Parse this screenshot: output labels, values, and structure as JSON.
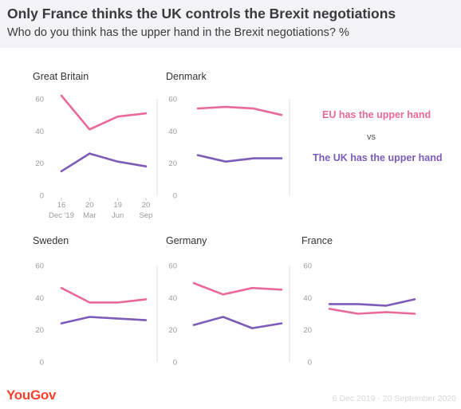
{
  "header": {
    "title": "Only France thinks the UK controls the Brexit negotiations",
    "subtitle": "Who do you think has the upper hand in the Brexit negotiations? %"
  },
  "legend": {
    "eu_label": "EU has the upper hand",
    "vs_label": "vs",
    "uk_label": "The UK has the upper hand"
  },
  "colors": {
    "eu": "#e8699a",
    "uk": "#7b5cb9",
    "axis_text": "#9a9a9a",
    "panel_title": "#333333",
    "divider": "#dedede"
  },
  "footer": {
    "brand": "YouGov",
    "date_range": "6 Dec 2019 - 20 September 2020"
  },
  "chart_data": [
    {
      "type": "line",
      "title": "Great Britain",
      "x": [
        "16 Dec '19",
        "20 Mar",
        "19 Jun",
        "20 Sep"
      ],
      "x_ticks": [
        [
          "16",
          "Dec '19"
        ],
        [
          "20",
          "Mar"
        ],
        [
          "19",
          "Jun"
        ],
        [
          "20",
          "Sep"
        ]
      ],
      "show_x_ticks": true,
      "y_ticks": [
        "60",
        "40",
        "20",
        "0"
      ],
      "ylim": [
        0,
        60
      ],
      "series": [
        {
          "name": "EU has the upper hand",
          "values": [
            62,
            41,
            49,
            51
          ]
        },
        {
          "name": "The UK has the upper hand",
          "values": [
            15,
            26,
            21,
            18
          ]
        }
      ]
    },
    {
      "type": "line",
      "title": "Denmark",
      "x": [
        "16 Dec '19",
        "20 Mar",
        "19 Jun",
        "20 Sep"
      ],
      "show_x_ticks": false,
      "y_ticks": [
        "60",
        "40",
        "20",
        "0"
      ],
      "ylim": [
        0,
        60
      ],
      "series": [
        {
          "name": "EU has the upper hand",
          "values": [
            54,
            55,
            54,
            50
          ]
        },
        {
          "name": "The UK has the upper hand",
          "values": [
            25,
            21,
            23,
            23
          ]
        }
      ]
    },
    {
      "type": "line",
      "title": "Sweden",
      "x": [
        "16 Dec '19",
        "20 Mar",
        "19 Jun",
        "20 Sep"
      ],
      "show_x_ticks": false,
      "y_ticks": [
        "60",
        "40",
        "20",
        "0"
      ],
      "ylim": [
        0,
        60
      ],
      "series": [
        {
          "name": "EU has the upper hand",
          "values": [
            46,
            37,
            37,
            39
          ]
        },
        {
          "name": "The UK has the upper hand",
          "values": [
            24,
            28,
            27,
            26
          ]
        }
      ]
    },
    {
      "type": "line",
      "title": "Germany",
      "x": [
        "16 Dec '19",
        "20 Mar",
        "19 Jun",
        "20 Sep"
      ],
      "show_x_ticks": false,
      "y_ticks": [
        "60",
        "40",
        "20",
        "0"
      ],
      "ylim": [
        0,
        60
      ],
      "series": [
        {
          "name": "EU has the upper hand",
          "values": [
            49,
            42,
            46,
            45
          ]
        },
        {
          "name": "The UK has the upper hand",
          "values": [
            23,
            28,
            21,
            24
          ]
        }
      ]
    },
    {
      "type": "line",
      "title": "France",
      "x": [
        "16 Dec '19",
        "20 Mar",
        "19 Jun",
        "20 Sep"
      ],
      "show_x_ticks": false,
      "y_ticks": [
        "60",
        "40",
        "20",
        "0"
      ],
      "ylim": [
        0,
        60
      ],
      "series": [
        {
          "name": "EU has the upper hand",
          "values": [
            33,
            30,
            31,
            30
          ]
        },
        {
          "name": "The UK has the upper hand",
          "values": [
            36,
            36,
            35,
            39
          ]
        }
      ]
    }
  ]
}
